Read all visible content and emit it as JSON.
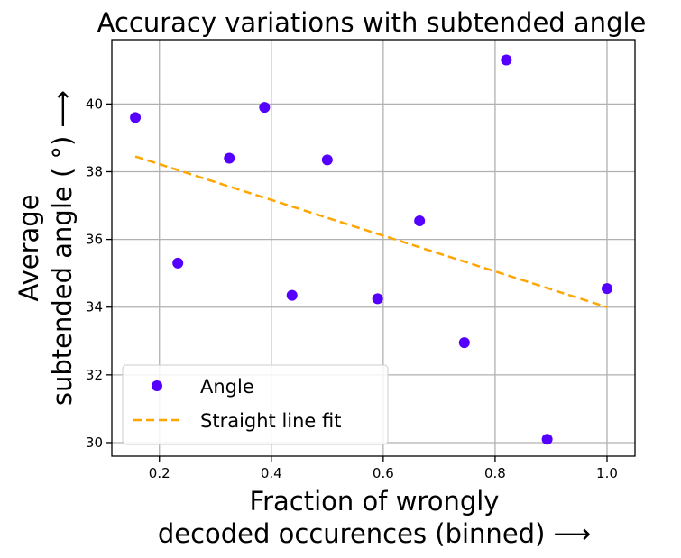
{
  "chart_data": {
    "type": "scatter",
    "title": "Accuracy variations with subtended angle",
    "xlabel_lines": [
      "Fraction of wrongly",
      "decoded occurences (binned) ⟶"
    ],
    "ylabel_lines": [
      "Average",
      "subtended angle ( °) ⟶"
    ],
    "xlim": [
      0.115,
      1.05
    ],
    "ylim": [
      29.6,
      41.9
    ],
    "xticks": [
      0.2,
      0.4,
      0.6,
      0.8,
      1.0
    ],
    "xtick_labels": [
      "0.2",
      "0.4",
      "0.6",
      "0.8",
      "1.0"
    ],
    "yticks": [
      30,
      32,
      34,
      36,
      38,
      40
    ],
    "ytick_labels": [
      "30",
      "32",
      "34",
      "36",
      "38",
      "40"
    ],
    "grid": true,
    "legend_position": "lower-left",
    "series": [
      {
        "name": "Angle",
        "kind": "points",
        "color": "#5500ff",
        "x": [
          0.157,
          0.233,
          0.325,
          0.388,
          0.437,
          0.5,
          0.59,
          0.665,
          0.745,
          0.82,
          0.893,
          1.0
        ],
        "y": [
          39.6,
          35.3,
          38.4,
          39.9,
          34.35,
          38.35,
          34.25,
          36.55,
          32.95,
          41.3,
          30.1,
          34.55
        ]
      },
      {
        "name": "Straight line fit",
        "kind": "dashed-line",
        "color": "#ffa500",
        "x": [
          0.157,
          1.0
        ],
        "y": [
          38.45,
          34.0
        ]
      }
    ]
  }
}
